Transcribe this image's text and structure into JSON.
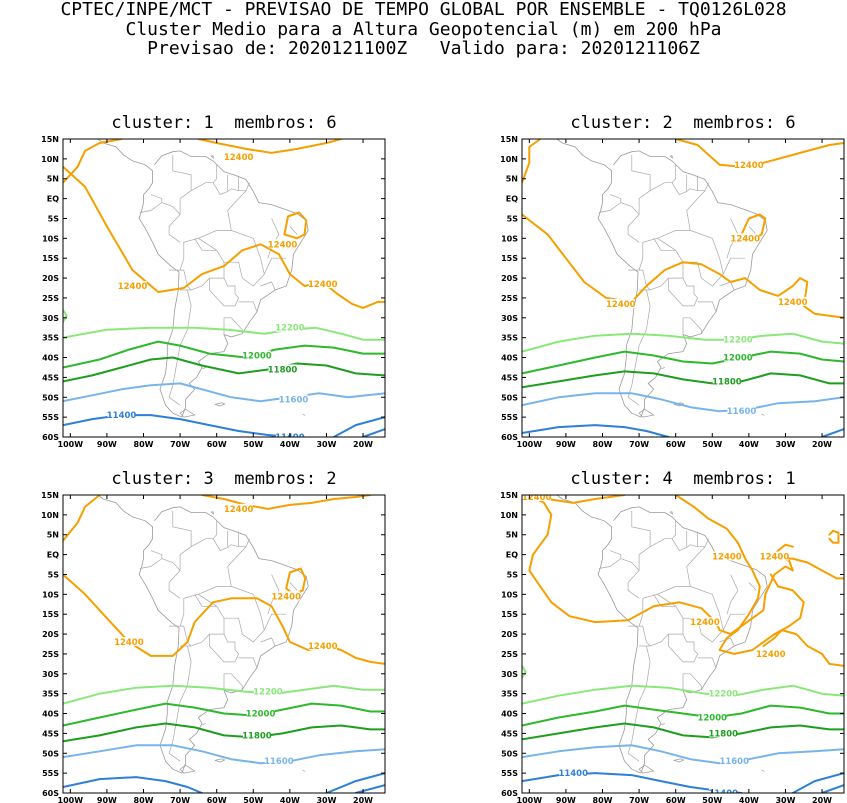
{
  "header": {
    "line1": "CPTEC/INPE/MCT - PREVISAO DE TEMPO GLOBAL POR ENSEMBLE - TQ0126L028",
    "line2": "Cluster Medio para a Altura Geopotencial (m) em 200 hPa",
    "line3": "Previsao de: 2020121100Z   Valido para: 2020121106Z"
  },
  "panels": [
    {
      "title": "cluster: 1  membros: 6"
    },
    {
      "title": "cluster: 2  membros: 6"
    },
    {
      "title": "cluster: 3  membros: 2"
    },
    {
      "title": "cluster: 4  membros: 1"
    }
  ],
  "axes": {
    "lat_labels": [
      "15N",
      "10N",
      "5N",
      "EQ",
      "5S",
      "10S",
      "15S",
      "20S",
      "25S",
      "30S",
      "35S",
      "40S",
      "45S",
      "50S",
      "55S",
      "60S"
    ],
    "lon_labels": [
      "100W",
      "90W",
      "80W",
      "70W",
      "60W",
      "50W",
      "40W",
      "30W",
      "20W"
    ]
  },
  "contour_levels": [
    {
      "value": "12400",
      "color": "#f5a000"
    },
    {
      "value": "12200",
      "color": "#8ae87a"
    },
    {
      "value": "12000",
      "color": "#2db82d"
    },
    {
      "value": "11800",
      "color": "#1e9e1e"
    },
    {
      "value": "11600",
      "color": "#78b4ea"
    },
    {
      "value": "11400",
      "color": "#2e7fd6"
    }
  ]
}
